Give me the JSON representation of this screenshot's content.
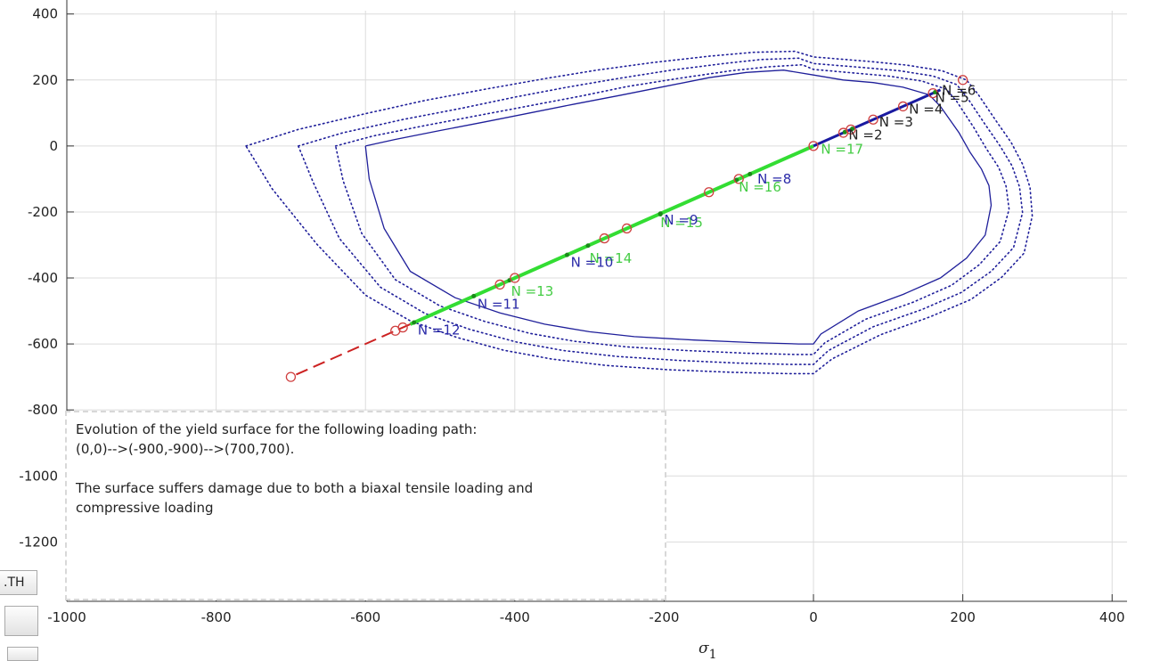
{
  "chart_data": {
    "type": "line",
    "xlabel": "σ1",
    "xlim": [
      -1000,
      420
    ],
    "ylim": [
      -1380,
      410
    ],
    "grid": true,
    "x_ticks": [
      -1000,
      -800,
      -600,
      -400,
      -200,
      0,
      200,
      400
    ],
    "y_ticks": [
      400,
      200,
      0,
      -200,
      -400,
      -600,
      -800,
      -1000,
      -1200
    ],
    "x_tick_labels": [
      "-1000",
      "-800",
      "-600",
      "-400",
      "-200",
      "0",
      "200",
      "400"
    ],
    "y_tick_labels": [
      "400",
      "200",
      "0",
      "-200",
      "-400",
      "-600",
      "-800",
      "-1000",
      "-1200"
    ],
    "colors": {
      "surface": "#1f1f9a",
      "path_blue": "#1a1aa0",
      "path_green": "#33dd33",
      "dash_red": "#cc2222",
      "marker_red": "#d04040",
      "label_dark": "#222222",
      "label_blue": "#2a2aa8",
      "label_green": "#44cc44"
    },
    "series": [
      {
        "style": "solid",
        "color": "surface",
        "x": [
          -600,
          -560,
          -500,
          -440,
          -380,
          -320,
          -260,
          -200,
          -140,
          -90,
          -40,
          0,
          40,
          80,
          120,
          155,
          170,
          195,
          210,
          225,
          235,
          238,
          230,
          205,
          170,
          120,
          60,
          10,
          0,
          -20,
          -80,
          -160,
          -240,
          -300,
          -360,
          -420,
          -480,
          -540,
          -575,
          -595,
          -600
        ],
        "y": [
          0,
          20,
          47,
          73,
          100,
          127,
          153,
          180,
          207,
          223,
          230,
          215,
          200,
          192,
          178,
          155,
          120,
          40,
          -20,
          -70,
          -120,
          -180,
          -270,
          -340,
          -400,
          -450,
          -500,
          -570,
          -600,
          -600,
          -596,
          -588,
          -578,
          -563,
          -540,
          -506,
          -460,
          -380,
          -250,
          -100,
          0
        ]
      },
      {
        "style": "dotted",
        "color": "surface",
        "x": [
          -640,
          -590,
          -520,
          -450,
          -380,
          -310,
          -250,
          -180,
          -110,
          -60,
          -15,
          0,
          55,
          100,
          145,
          178,
          192,
          215,
          232,
          248,
          258,
          262,
          250,
          222,
          185,
          133,
          70,
          15,
          0,
          -25,
          -90,
          -170,
          -250,
          -320,
          -380,
          -440,
          -500,
          -560,
          -605,
          -630,
          -640
        ],
        "y": [
          0,
          30,
          62,
          92,
          122,
          152,
          180,
          205,
          228,
          240,
          246,
          232,
          221,
          212,
          197,
          172,
          135,
          55,
          -10,
          -65,
          -122,
          -192,
          -290,
          -360,
          -422,
          -474,
          -525,
          -597,
          -632,
          -632,
          -628,
          -620,
          -609,
          -592,
          -568,
          -532,
          -485,
          -405,
          -265,
          -105,
          0
        ]
      },
      {
        "style": "dotted",
        "color": "surface",
        "x": [
          -690,
          -630,
          -550,
          -470,
          -400,
          -330,
          -260,
          -190,
          -120,
          -70,
          -20,
          0,
          65,
          115,
          160,
          192,
          206,
          230,
          250,
          266,
          276,
          280,
          268,
          238,
          198,
          145,
          80,
          20,
          0,
          -30,
          -100,
          -180,
          -262,
          -335,
          -398,
          -460,
          -520,
          -580,
          -635,
          -670,
          -690
        ],
        "y": [
          0,
          40,
          80,
          115,
          148,
          178,
          205,
          230,
          250,
          262,
          266,
          250,
          238,
          228,
          212,
          186,
          146,
          65,
          0,
          -60,
          -124,
          -202,
          -308,
          -380,
          -444,
          -496,
          -548,
          -620,
          -662,
          -662,
          -658,
          -650,
          -638,
          -620,
          -594,
          -556,
          -508,
          -428,
          -280,
          -110,
          0
        ]
      },
      {
        "style": "dotted",
        "color": "surface",
        "x": [
          -760,
          -690,
          -600,
          -520,
          -440,
          -360,
          -290,
          -215,
          -140,
          -80,
          -25,
          0,
          75,
          125,
          172,
          205,
          220,
          245,
          265,
          280,
          290,
          293,
          282,
          252,
          211,
          156,
          90,
          25,
          0,
          -35,
          -110,
          -195,
          -278,
          -350,
          -415,
          -478,
          -540,
          -600,
          -665,
          -725,
          -760
        ],
        "y": [
          0,
          50,
          98,
          138,
          172,
          204,
          230,
          253,
          272,
          284,
          287,
          270,
          256,
          245,
          228,
          200,
          158,
          75,
          10,
          -55,
          -126,
          -212,
          -325,
          -398,
          -465,
          -518,
          -572,
          -645,
          -690,
          -690,
          -686,
          -678,
          -665,
          -646,
          -619,
          -580,
          -530,
          -452,
          -298,
          -130,
          0
        ]
      },
      {
        "style": "solid",
        "color": "path_blue",
        "x": [
          0,
          170
        ],
        "y": [
          0,
          170
        ]
      },
      {
        "style": "solid",
        "color": "path_green",
        "x": [
          0,
          -540
        ],
        "y": [
          0,
          -540
        ]
      },
      {
        "style": "dashed",
        "color": "dash_red",
        "x": [
          -540,
          -700
        ],
        "y": [
          -540,
          -700
        ]
      }
    ],
    "markers": {
      "circles": [
        [
          200,
          200
        ],
        [
          160,
          160
        ],
        [
          120,
          120
        ],
        [
          80,
          80
        ],
        [
          50,
          50
        ],
        [
          40,
          40
        ],
        [
          0,
          0
        ],
        [
          -100,
          -100
        ],
        [
          -140,
          -140
        ],
        [
          -250,
          -250
        ],
        [
          -280,
          -280
        ],
        [
          -400,
          -400
        ],
        [
          -420,
          -420
        ],
        [
          -550,
          -550
        ],
        [
          -560,
          -560
        ],
        [
          -700,
          -700
        ]
      ],
      "dots": [
        [
          163,
          163
        ],
        [
          42,
          42
        ],
        [
          52,
          52
        ],
        [
          -85,
          -85
        ],
        [
          -205,
          -205
        ],
        [
          -330,
          -330
        ],
        [
          -455,
          -455
        ],
        [
          -535,
          -535
        ],
        [
          -103,
          -103
        ],
        [
          -205,
          -207
        ],
        [
          -302,
          -302
        ],
        [
          -407,
          -407
        ]
      ]
    },
    "point_labels": [
      {
        "text": "N =6",
        "x": 172,
        "y": 168,
        "color": "label_dark"
      },
      {
        "text": "N =5",
        "x": 163,
        "y": 147,
        "color": "label_dark"
      },
      {
        "text": "N =4",
        "x": 128,
        "y": 112,
        "color": "label_dark"
      },
      {
        "text": "N =3",
        "x": 88,
        "y": 72,
        "color": "label_dark"
      },
      {
        "text": "N =2",
        "x": 47,
        "y": 33,
        "color": "label_dark"
      },
      {
        "text": "N =17",
        "x": 10,
        "y": -10,
        "color": "label_green"
      },
      {
        "text": "N =16",
        "x": -100,
        "y": -125,
        "color": "label_green"
      },
      {
        "text": "N =8",
        "x": -75,
        "y": -100,
        "color": "label_blue"
      },
      {
        "text": "N =15",
        "x": -205,
        "y": -232,
        "color": "label_green"
      },
      {
        "text": "N =9",
        "x": -200,
        "y": -225,
        "color": "label_blue"
      },
      {
        "text": "N =14",
        "x": -300,
        "y": -340,
        "color": "label_green"
      },
      {
        "text": "N =10",
        "x": -325,
        "y": -353,
        "color": "label_blue"
      },
      {
        "text": "N =13",
        "x": -405,
        "y": -440,
        "color": "label_green"
      },
      {
        "text": "N =11",
        "x": -450,
        "y": -480,
        "color": "label_blue"
      },
      {
        "text": "N =12",
        "x": -530,
        "y": -558,
        "color": "label_blue"
      }
    ]
  },
  "annotation": {
    "line1": "Evolution of the yield surface for the following loading path:",
    "line2": "(0,0)-->(-900,-900)-->(700,700).",
    "line3": "The surface suffers damage due to both a biaxal tensile loading and",
    "line4": "compressive loading"
  },
  "controls": {
    "path_button": ".TH"
  }
}
